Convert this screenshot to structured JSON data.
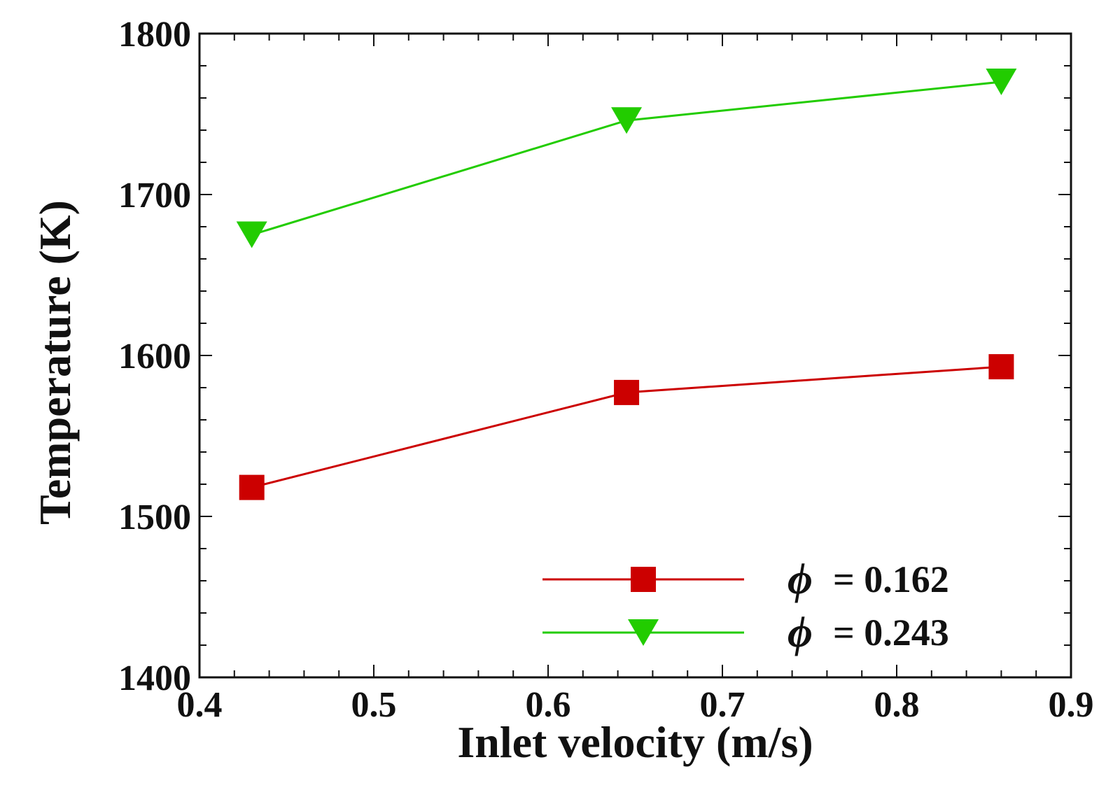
{
  "chart_data": {
    "type": "line",
    "title": "",
    "xlabel": "Inlet velocity (m/s)",
    "ylabel": "Temperature (K)",
    "xlim": [
      0.4,
      0.9
    ],
    "ylim": [
      1400,
      1800
    ],
    "xticks": [
      0.4,
      0.5,
      0.6,
      0.7,
      0.8,
      0.9
    ],
    "xtick_labels": [
      "0.4",
      "0.5",
      "0.6",
      "0.7",
      "0.8",
      "0.9"
    ],
    "yticks": [
      1400,
      1500,
      1600,
      1700,
      1800
    ],
    "ytick_labels": [
      "1400",
      "1500",
      "1600",
      "1700",
      "1800"
    ],
    "grid": false,
    "legend_position": "bottom-right",
    "series": [
      {
        "name": "ϕ = 0.162",
        "symbol": "ϕ",
        "value_label": "= 0.162",
        "color": "#cc0000",
        "marker": "square",
        "x": [
          0.43,
          0.645,
          0.86
        ],
        "y": [
          1518,
          1577,
          1593
        ]
      },
      {
        "name": "ϕ = 0.243",
        "symbol": "ϕ",
        "value_label": "= 0.243",
        "color": "#22cc00",
        "marker": "triangle-down",
        "x": [
          0.43,
          0.645,
          0.86
        ],
        "y": [
          1675,
          1746,
          1770
        ]
      }
    ]
  }
}
